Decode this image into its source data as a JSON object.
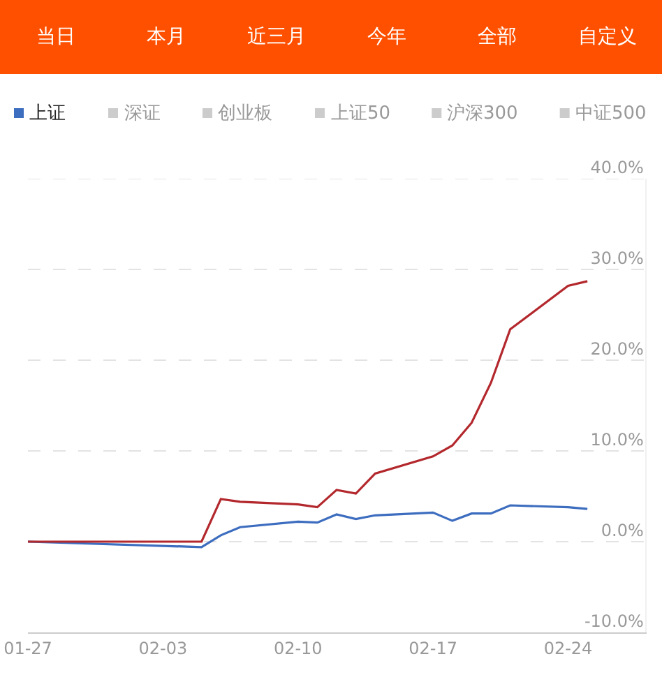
{
  "chart_data": {
    "type": "line",
    "annotations": [
      "当日",
      "本月",
      "近三月",
      "今年",
      "全部",
      "自定义"
    ],
    "x": [
      "--01-27",
      "--02-05",
      "--02-06",
      "--02-07",
      "--02-10",
      "--02-11",
      "--02-12",
      "--02-13",
      "--02-14",
      "--02-17",
      "--02-18",
      "--02-19",
      "--02-20",
      "--02-21",
      "--02-24",
      "--02-25"
    ],
    "series": [
      {
        "name": "上证",
        "color": "#3d6dbf",
        "values": [
          0,
          -0.6,
          0.7,
          1.6,
          2.2,
          2.1,
          3.0,
          2.5,
          2.9,
          3.2,
          2.3,
          3.1,
          3.1,
          4.0,
          3.8,
          3.6
        ]
      },
      {
        "name": "深证",
        "color": "#cccccc",
        "values": [
          null,
          null,
          null,
          null,
          null,
          null,
          null,
          null,
          null,
          null,
          null,
          null,
          null,
          null,
          null,
          null
        ]
      },
      {
        "name": "创业板",
        "color": "#cccccc",
        "values": [
          null,
          null,
          null,
          null,
          null,
          null,
          null,
          null,
          null,
          null,
          null,
          null,
          null,
          null,
          null,
          null
        ]
      },
      {
        "name": "上证50",
        "color": "#cccccc",
        "values": [
          null,
          null,
          null,
          null,
          null,
          null,
          null,
          null,
          null,
          null,
          null,
          null,
          null,
          null,
          null,
          null
        ]
      },
      {
        "name": "沪深300",
        "color": "#cccccc",
        "values": [
          null,
          null,
          null,
          null,
          null,
          null,
          null,
          null,
          null,
          null,
          null,
          null,
          null,
          null,
          null,
          null
        ]
      },
      {
        "name": "中证500",
        "color": "#cccccc",
        "values": [
          null,
          null,
          null,
          null,
          null,
          null,
          null,
          null,
          null,
          null,
          null,
          null,
          null,
          null,
          null,
          null
        ]
      },
      {
        "color": "#b3282d",
        "values": [
          0,
          0,
          4.7,
          4.4,
          4.1,
          3.8,
          5.7,
          5.3,
          7.5,
          9.4,
          10.6,
          13.1,
          17.5,
          23.4,
          28.2,
          28.7
        ]
      }
    ],
    "xlim": [
      "--01-27",
      "--02-28"
    ],
    "xticks": [
      {
        "value": "--01-27",
        "label": "01-27"
      },
      {
        "value": "--02-03",
        "label": "02-03"
      },
      {
        "value": "--02-10",
        "label": "02-10"
      },
      {
        "value": "--02-17",
        "label": "02-17"
      },
      {
        "value": "--02-24",
        "label": "02-24"
      }
    ],
    "ylim": [
      -10,
      40
    ],
    "yticks": [
      {
        "value": -10,
        "label": "-10.0%"
      },
      {
        "value": 0,
        "label": "0.0%"
      },
      {
        "value": 10,
        "label": "10.0%"
      },
      {
        "value": 20,
        "label": "20.0%"
      },
      {
        "value": 30,
        "label": "30.0%"
      },
      {
        "value": 40,
        "label": "40.0%"
      }
    ],
    "grid": "y",
    "legend": "top"
  }
}
